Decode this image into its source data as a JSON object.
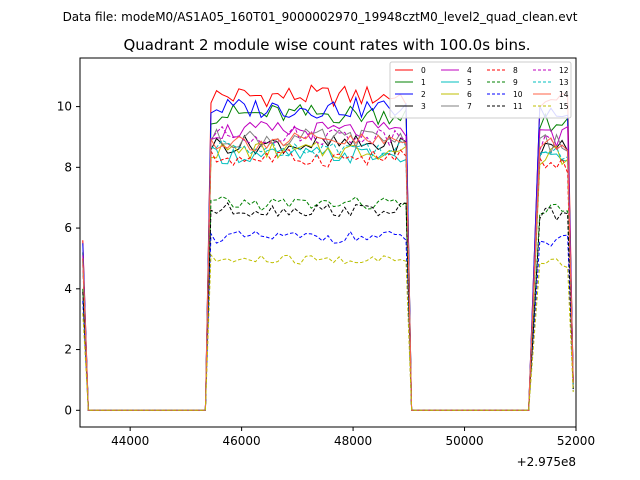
{
  "chart_data": {
    "type": "line",
    "suptitle": "Data file: modeM0/AS1A05_160T01_9000002970_19948cztM0_level2_quad_clean.evt",
    "title": "Quadrant 2 module wise count rates with 100.0s bins.",
    "xlabel": "",
    "ylabel": "",
    "x_offset_label": "+2.975e8",
    "x_offset": 297500000,
    "xlim": [
      43100,
      52000
    ],
    "ylim": [
      -0.55,
      11.6
    ],
    "xticks": [
      44000,
      46000,
      48000,
      50000,
      52000
    ],
    "xtick_labels": [
      "44000",
      "46000",
      "48000",
      "50000",
      "52000"
    ],
    "yticks": [
      0,
      2,
      4,
      6,
      8,
      10
    ],
    "ytick_labels": [
      "0",
      "2",
      "4",
      "6",
      "8",
      "10"
    ],
    "grid": false,
    "legend_placement": "top-right",
    "legend_columns": 4,
    "bin_width": 100,
    "segments": [
      {
        "start": 43150,
        "first": 0.8,
        "low": [
          43250,
          45350
        ],
        "ramp_end": 45450
      },
      {
        "start": 45450,
        "plateau_end": 48950,
        "fall_end": 49050,
        "low_end": 51150,
        "ramp_end": 51350
      },
      {
        "start": 51350,
        "end": 51950
      }
    ],
    "series": [
      {
        "name": "0",
        "color": "#ff0000",
        "dash": "solid",
        "level": 10.35,
        "first": 5.6,
        "last": 1.0
      },
      {
        "name": "1",
        "color": "#008000",
        "dash": "solid",
        "level": 9.75,
        "first": 5.2,
        "last": 0.95
      },
      {
        "name": "2",
        "color": "#0000ff",
        "dash": "solid",
        "level": 9.95,
        "first": 5.5,
        "last": 1.0
      },
      {
        "name": "3",
        "color": "#000000",
        "dash": "solid",
        "level": 8.75,
        "first": 5.0,
        "last": 0.9
      },
      {
        "name": "4",
        "color": "#bf00bf",
        "dash": "solid",
        "level": 9.2,
        "first": 5.1,
        "last": 0.9
      },
      {
        "name": "5",
        "color": "#00bfbf",
        "dash": "solid",
        "level": 8.4,
        "first": 4.9,
        "last": 0.85
      },
      {
        "name": "6",
        "color": "#bfbf00",
        "dash": "solid",
        "level": 8.55,
        "first": 4.9,
        "last": 0.85
      },
      {
        "name": "7",
        "color": "#808080",
        "dash": "solid",
        "level": 8.95,
        "first": 5.0,
        "last": 0.9
      },
      {
        "name": "8",
        "color": "#ff0000",
        "dash": "dashed",
        "level": 8.3,
        "first": 4.8,
        "last": 0.85
      },
      {
        "name": "9",
        "color": "#008000",
        "dash": "dashed",
        "level": 6.8,
        "first": 4.0,
        "last": 0.7
      },
      {
        "name": "10",
        "color": "#0000ff",
        "dash": "dashed",
        "level": 5.7,
        "first": 3.6,
        "last": 0.65
      },
      {
        "name": "11",
        "color": "#000000",
        "dash": "dashed",
        "level": 6.6,
        "first": 3.9,
        "last": 0.7
      },
      {
        "name": "12",
        "color": "#bf00bf",
        "dash": "dashed",
        "level": 9.05,
        "first": 5.0,
        "last": 0.9
      },
      {
        "name": "13",
        "color": "#00bfbf",
        "dash": "dashed",
        "level": 8.65,
        "first": 4.9,
        "last": 0.85
      },
      {
        "name": "14",
        "color": "#ff6347",
        "dash": "solid",
        "level": 8.85,
        "first": 5.0,
        "last": 0.9
      },
      {
        "name": "15",
        "color": "#bfbf00",
        "dash": "dashed",
        "level": 4.95,
        "first": 3.2,
        "last": 0.6
      }
    ]
  }
}
